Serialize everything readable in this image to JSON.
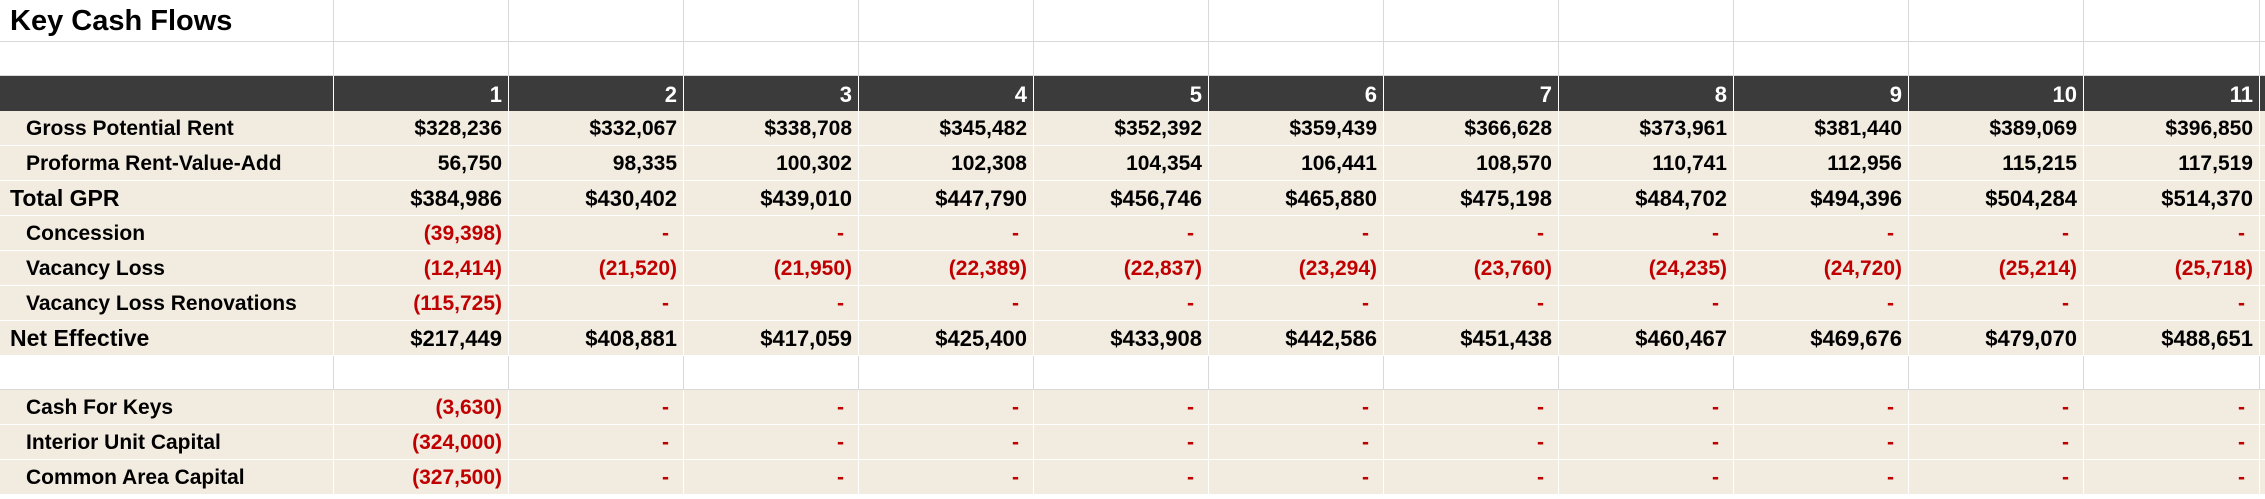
{
  "title": "Key Cash Flows",
  "headers": [
    "1",
    "2",
    "3",
    "4",
    "5",
    "6",
    "7",
    "8",
    "9",
    "10",
    "11"
  ],
  "rows": [
    {
      "label": "Gross Potential Rent",
      "values": [
        "$328,236",
        "$332,067",
        "$338,708",
        "$345,482",
        "$352,392",
        "$359,439",
        "$366,628",
        "$373,961",
        "$381,440",
        "$389,069",
        "$396,850"
      ]
    },
    {
      "label": "Proforma Rent-Value-Add",
      "values": [
        "56,750",
        "98,335",
        "100,302",
        "102,308",
        "104,354",
        "106,441",
        "108,570",
        "110,741",
        "112,956",
        "115,215",
        "117,519"
      ]
    },
    {
      "label": "Total GPR",
      "values": [
        "$384,986",
        "$430,402",
        "$439,010",
        "$447,790",
        "$456,746",
        "$465,880",
        "$475,198",
        "$484,702",
        "$494,396",
        "$504,284",
        "$514,370"
      ]
    },
    {
      "label": "Concession",
      "values": [
        "(39,398)",
        "-",
        "-",
        "-",
        "-",
        "-",
        "-",
        "-",
        "-",
        "-",
        "-"
      ]
    },
    {
      "label": "Vacancy Loss",
      "values": [
        "(12,414)",
        "(21,520)",
        "(21,950)",
        "(22,389)",
        "(22,837)",
        "(23,294)",
        "(23,760)",
        "(24,235)",
        "(24,720)",
        "(25,214)",
        "(25,718)"
      ]
    },
    {
      "label": "Vacancy Loss Renovations",
      "values": [
        "(115,725)",
        "-",
        "-",
        "-",
        "-",
        "-",
        "-",
        "-",
        "-",
        "-",
        "-"
      ]
    },
    {
      "label": "Net Effective",
      "values": [
        "$217,449",
        "$408,881",
        "$417,059",
        "$425,400",
        "$433,908",
        "$442,586",
        "$451,438",
        "$460,467",
        "$469,676",
        "$479,070",
        "$488,651"
      ]
    },
    {
      "label": "Cash For Keys",
      "values": [
        "(3,630)",
        "-",
        "-",
        "-",
        "-",
        "-",
        "-",
        "-",
        "-",
        "-",
        "-"
      ]
    },
    {
      "label": "Interior Unit Capital",
      "values": [
        "(324,000)",
        "-",
        "-",
        "-",
        "-",
        "-",
        "-",
        "-",
        "-",
        "-",
        "-"
      ]
    },
    {
      "label": "Common Area Capital",
      "values": [
        "(327,500)",
        "-",
        "-",
        "-",
        "-",
        "-",
        "-",
        "-",
        "-",
        "-",
        "-"
      ]
    }
  ],
  "colors": {
    "header_bg": "#3b3b3b",
    "row_bg": "#f2ebe0",
    "negative": "#c00000"
  }
}
